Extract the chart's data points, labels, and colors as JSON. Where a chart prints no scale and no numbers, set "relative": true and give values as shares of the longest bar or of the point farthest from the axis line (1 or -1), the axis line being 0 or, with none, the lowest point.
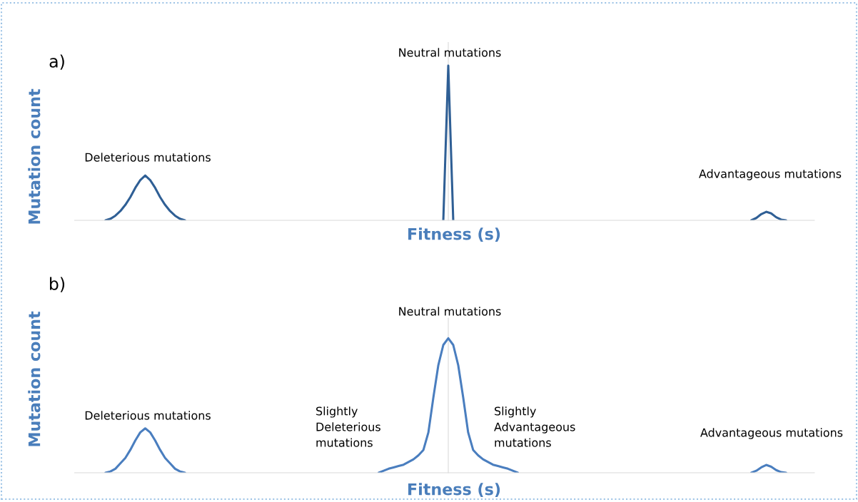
{
  "chart_data": [
    {
      "type": "line",
      "title": "a)",
      "xlabel": "Fitness (s)",
      "ylabel": "Mutation count",
      "relative": true,
      "categories": [
        null,
        null,
        null,
        null,
        null,
        null,
        null,
        null,
        null,
        null,
        null,
        null,
        null,
        null,
        null,
        null,
        null,
        null,
        null,
        null,
        null,
        null,
        null,
        null,
        null,
        null,
        null,
        null,
        null,
        null,
        null,
        null,
        null,
        null,
        null,
        null,
        null,
        null,
        null,
        null,
        null,
        null,
        null,
        null,
        null,
        null,
        null,
        null,
        null,
        null,
        null,
        null,
        null,
        null,
        null,
        null,
        null,
        null,
        null,
        null,
        null,
        null,
        null,
        null,
        null,
        null,
        null,
        null,
        null,
        null,
        null,
        null,
        null,
        null,
        null,
        null,
        null,
        null,
        null,
        null,
        null,
        null,
        null,
        null,
        null,
        null,
        null,
        null,
        null,
        null,
        null,
        null,
        null,
        null,
        null,
        null,
        null,
        null,
        null,
        null,
        null,
        null,
        null,
        null,
        null,
        null,
        null,
        null,
        null,
        null,
        null,
        null,
        null,
        null,
        null,
        null,
        null,
        null,
        null,
        null,
        null,
        null,
        null,
        null,
        null,
        null,
        null,
        null,
        null,
        null,
        null,
        null,
        null,
        null,
        null,
        null,
        null,
        null,
        null,
        null,
        null,
        null,
        null,
        null,
        null,
        null,
        null,
        null,
        null
      ],
      "series": [
        {
          "color": "#2f5f95",
          "values": [
            null,
            null,
            null,
            null,
            null,
            0,
            0.01,
            0.03,
            0.06,
            0.1,
            0.15,
            0.21,
            0.26,
            0.29,
            0.26,
            0.21,
            0.15,
            0.1,
            0.06,
            0.03,
            0.01,
            0,
            null,
            null,
            null,
            null,
            null,
            null,
            null,
            null,
            null,
            null,
            null,
            null,
            null,
            null,
            null,
            null,
            null,
            null,
            null,
            null,
            null,
            null,
            null,
            null,
            null,
            null,
            null,
            null,
            null,
            null,
            null,
            null,
            null,
            null,
            null,
            null,
            null,
            null,
            null,
            null,
            null,
            null,
            null,
            null,
            null,
            null,
            null,
            null,
            null,
            null,
            null,
            null,
            null,
            null,
            null,
            null,
            null,
            null,
            null,
            null,
            null,
            null,
            null,
            null,
            null,
            null,
            null,
            null,
            null,
            null,
            null,
            null,
            null,
            null,
            null,
            null,
            null,
            null,
            null,
            null,
            null,
            null,
            null,
            null,
            null,
            null,
            null,
            null,
            null,
            null,
            null,
            null,
            null,
            null,
            null,
            null,
            null,
            null,
            null,
            null,
            null,
            null,
            null,
            null,
            null,
            null,
            null,
            null,
            null,
            null,
            null,
            null,
            null,
            null,
            null,
            null,
            null,
            null,
            null,
            null,
            null,
            null,
            null,
            null,
            null,
            null,
            null
          ]
        },
        {
          "color": "#2f5f95",
          "values": [
            null,
            null,
            null,
            null,
            null,
            null,
            null,
            null,
            null,
            null,
            null,
            null,
            null,
            null,
            null,
            null,
            null,
            null,
            null,
            null,
            null,
            null,
            null,
            null,
            null,
            null,
            null,
            null,
            null,
            null,
            null,
            null,
            null,
            null,
            null,
            null,
            null,
            null,
            null,
            null,
            null,
            null,
            null,
            null,
            null,
            null,
            null,
            null,
            null,
            null,
            null,
            null,
            null,
            null,
            null,
            null,
            null,
            null,
            null,
            null,
            null,
            null,
            null,
            null,
            null,
            null,
            null,
            null,
            null,
            null,
            null,
            null,
            null,
            0,
            1,
            0,
            null,
            null,
            null,
            null,
            null,
            null,
            null,
            null,
            null,
            null,
            null,
            null,
            null,
            null,
            null,
            null,
            null,
            null,
            null,
            null,
            null,
            null,
            null,
            null,
            null,
            null,
            null,
            null,
            null,
            null,
            null,
            null,
            null,
            null,
            null,
            null,
            null,
            null,
            null,
            null,
            null,
            null,
            null,
            null,
            null,
            null,
            null,
            null,
            null,
            null,
            null,
            null,
            null,
            null,
            null,
            null,
            null,
            null,
            null,
            null,
            null,
            null,
            null,
            null,
            null,
            null,
            null,
            null,
            null,
            null,
            null,
            null,
            null
          ]
        },
        {
          "color": "#2f5f95",
          "values": [
            null,
            null,
            null,
            null,
            null,
            null,
            null,
            null,
            null,
            null,
            null,
            null,
            null,
            null,
            null,
            null,
            null,
            null,
            null,
            null,
            null,
            null,
            null,
            null,
            null,
            null,
            null,
            null,
            null,
            null,
            null,
            null,
            null,
            null,
            null,
            null,
            null,
            null,
            null,
            null,
            null,
            null,
            null,
            null,
            null,
            null,
            null,
            null,
            null,
            null,
            null,
            null,
            null,
            null,
            null,
            null,
            null,
            null,
            null,
            null,
            null,
            null,
            null,
            null,
            null,
            null,
            null,
            null,
            null,
            null,
            null,
            null,
            null,
            null,
            null,
            null,
            null,
            null,
            null,
            null,
            null,
            null,
            null,
            null,
            null,
            null,
            null,
            null,
            null,
            null,
            null,
            null,
            null,
            null,
            null,
            null,
            null,
            null,
            null,
            null,
            null,
            null,
            null,
            null,
            null,
            null,
            null,
            null,
            null,
            null,
            null,
            null,
            null,
            null,
            null,
            null,
            null,
            null,
            null,
            null,
            null,
            null,
            null,
            null,
            null,
            null,
            null,
            null,
            null,
            null,
            null,
            null,
            null,
            null,
            null,
            0,
            0.015,
            0.04,
            0.055,
            0.045,
            0.02,
            0.005,
            0,
            null,
            null,
            null,
            null,
            null,
            null
          ]
        }
      ],
      "annotations": [
        "Deleterious mutations",
        "Neutral mutations",
        "Advantageous mutations"
      ]
    },
    {
      "type": "line",
      "title": "b)",
      "xlabel": "Fitness (s)",
      "ylabel": "Mutation count",
      "relative": true,
      "categories": [
        null,
        null,
        null,
        null,
        null,
        null,
        null,
        null,
        null,
        null,
        null,
        null,
        null,
        null,
        null,
        null,
        null,
        null,
        null,
        null,
        null,
        null,
        null,
        null,
        null,
        null,
        null,
        null,
        null,
        null,
        null,
        null,
        null,
        null,
        null,
        null,
        null,
        null,
        null,
        null,
        null,
        null,
        null,
        null,
        null,
        null,
        null,
        null,
        null,
        null,
        null,
        null,
        null,
        null,
        null,
        null,
        null,
        null,
        null,
        null,
        null,
        null,
        null,
        null,
        null,
        null,
        null,
        null,
        null,
        null,
        null,
        null,
        null,
        null,
        null,
        null,
        null,
        null,
        null,
        null,
        null,
        null,
        null,
        null,
        null,
        null,
        null,
        null,
        null,
        null,
        null,
        null,
        null,
        null,
        null,
        null,
        null,
        null,
        null,
        null,
        null,
        null,
        null,
        null,
        null,
        null,
        null,
        null,
        null,
        null,
        null,
        null,
        null,
        null,
        null,
        null,
        null,
        null,
        null,
        null,
        null,
        null,
        null,
        null,
        null,
        null,
        null,
        null,
        null,
        null,
        null,
        null,
        null,
        null,
        null,
        null,
        null,
        null,
        null,
        null,
        null,
        null,
        null,
        null,
        null,
        null,
        null,
        null,
        null
      ],
      "series": [
        {
          "color": "#4a7ebf",
          "values": [
            null,
            null,
            null,
            null,
            null,
            0,
            0.01,
            0.03,
            0.07,
            0.11,
            0.17,
            0.24,
            0.3,
            0.33,
            0.3,
            0.24,
            0.17,
            0.11,
            0.07,
            0.03,
            0.01,
            0,
            null,
            null,
            null,
            null,
            null,
            null,
            null,
            null,
            null,
            null,
            null,
            null,
            null,
            null,
            null,
            null,
            null,
            null,
            null,
            null,
            null,
            null,
            null,
            null,
            null,
            null,
            null,
            null,
            null,
            null,
            null,
            null,
            null,
            null,
            null,
            null,
            null,
            null,
            null,
            null,
            null,
            null,
            null,
            null,
            null,
            null,
            null,
            null,
            null,
            null,
            null,
            null,
            null,
            null,
            null,
            null,
            null,
            null,
            null,
            null,
            null,
            null,
            null,
            null,
            null,
            null,
            null,
            null,
            null,
            null,
            null,
            null,
            null,
            null,
            null,
            null,
            null,
            null,
            null,
            null,
            null,
            null,
            null,
            null,
            null,
            null,
            null,
            null,
            null,
            null,
            null,
            null,
            null,
            null,
            null,
            null,
            null,
            null,
            null,
            null,
            null,
            null,
            null,
            null,
            null,
            null,
            null,
            null,
            null,
            null,
            null,
            null,
            null,
            null,
            null,
            null,
            null,
            null,
            null,
            null,
            null,
            null,
            null,
            null,
            null,
            null,
            null
          ]
        },
        {
          "color": "#4a7ebf",
          "values": [
            null,
            null,
            null,
            null,
            null,
            null,
            null,
            null,
            null,
            null,
            null,
            null,
            null,
            null,
            null,
            null,
            null,
            null,
            null,
            null,
            null,
            null,
            null,
            null,
            null,
            null,
            null,
            null,
            null,
            null,
            null,
            null,
            null,
            null,
            null,
            null,
            null,
            null,
            null,
            null,
            null,
            null,
            null,
            null,
            null,
            null,
            null,
            null,
            null,
            null,
            null,
            null,
            null,
            null,
            null,
            null,
            null,
            null,
            null,
            null,
            0,
            0.015,
            0.03,
            0.04,
            0.05,
            0.06,
            0.08,
            0.1,
            0.13,
            0.17,
            0.3,
            0.56,
            0.8,
            0.95,
            1,
            0.95,
            0.8,
            0.56,
            0.3,
            0.17,
            0.13,
            0.1,
            0.08,
            0.06,
            0.05,
            0.04,
            0.03,
            0.015,
            0,
            null,
            null,
            null,
            null,
            null,
            null,
            null,
            null,
            null,
            null,
            null,
            null,
            null,
            null,
            null,
            null,
            null,
            null,
            null,
            null,
            null,
            null,
            null,
            null,
            null,
            null,
            null,
            null,
            null,
            null,
            null,
            null,
            null,
            null,
            null,
            null,
            null,
            null,
            null,
            null,
            null,
            null,
            null,
            null,
            null,
            null,
            null,
            null,
            null,
            null,
            null,
            null,
            null,
            null,
            null,
            null,
            null,
            null,
            null,
            null
          ]
        },
        {
          "color": "#4a7ebf",
          "values": [
            null,
            null,
            null,
            null,
            null,
            null,
            null,
            null,
            null,
            null,
            null,
            null,
            null,
            null,
            null,
            null,
            null,
            null,
            null,
            null,
            null,
            null,
            null,
            null,
            null,
            null,
            null,
            null,
            null,
            null,
            null,
            null,
            null,
            null,
            null,
            null,
            null,
            null,
            null,
            null,
            null,
            null,
            null,
            null,
            null,
            null,
            null,
            null,
            null,
            null,
            null,
            null,
            null,
            null,
            null,
            null,
            null,
            null,
            null,
            null,
            null,
            null,
            null,
            null,
            null,
            null,
            null,
            null,
            null,
            null,
            null,
            null,
            null,
            null,
            null,
            null,
            null,
            null,
            null,
            null,
            null,
            null,
            null,
            null,
            null,
            null,
            null,
            null,
            null,
            null,
            null,
            null,
            null,
            null,
            null,
            null,
            null,
            null,
            null,
            null,
            null,
            null,
            null,
            null,
            null,
            null,
            null,
            null,
            null,
            null,
            null,
            null,
            null,
            null,
            null,
            null,
            null,
            null,
            null,
            null,
            null,
            null,
            null,
            null,
            null,
            null,
            null,
            null,
            null,
            null,
            null,
            null,
            null,
            null,
            null,
            0,
            0.015,
            0.04,
            0.058,
            0.045,
            0.02,
            0.005,
            0,
            null,
            null,
            null,
            null,
            null,
            null
          ]
        }
      ],
      "annotations": [
        "Deleterious mutations",
        "Slightly\nDeleterious\nmutations",
        "Neutral mutations",
        "Slightly\nAdvantageous\nmutations",
        "Advantageous mutations"
      ]
    }
  ]
}
